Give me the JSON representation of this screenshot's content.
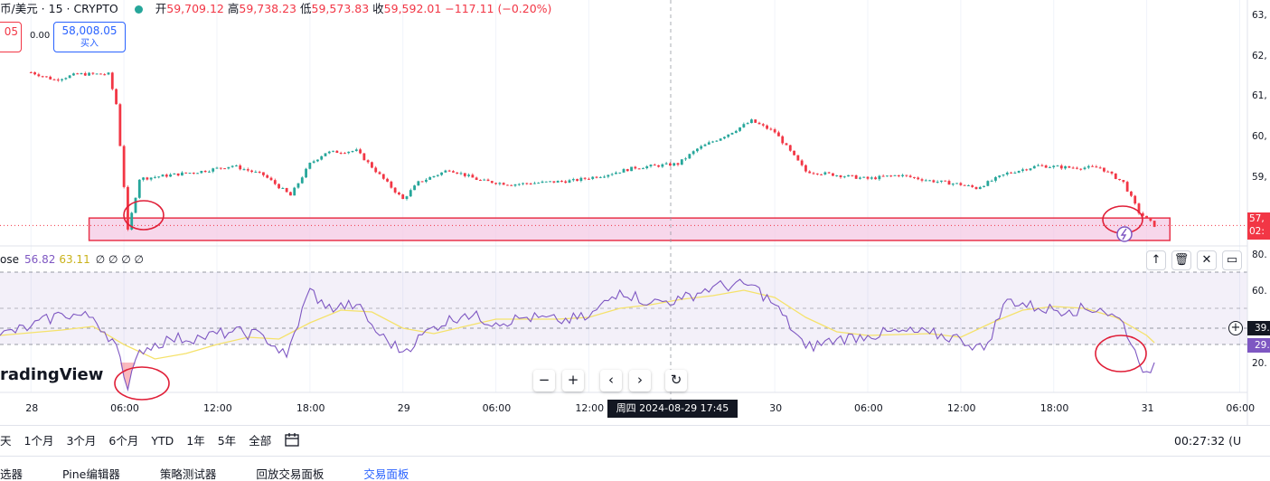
{
  "header": {
    "symbol": "币/美元 · 15 · CRYPTO",
    "open_label": "开",
    "open": "59,709.12",
    "high_label": "高",
    "high": "59,738.23",
    "low_label": "低",
    "low": "59,573.83",
    "close_label": "收",
    "close": "59,592.01",
    "change": "−117.11 (−0.20%)"
  },
  "trade": {
    "sell_price": "05",
    "spread": "0.00",
    "buy_price": "58,008.05",
    "buy_label": "买入"
  },
  "price_axis": [
    "63,",
    "62,",
    "61,",
    "60,",
    "59,",
    "57,",
    "02:"
  ],
  "rsi_axis": [
    "80.",
    "60.",
    "20.",
    "39.",
    "29."
  ],
  "rsi_legend": {
    "name": "ose",
    "rsi": "56.82",
    "ma": "63.11",
    "extras": "∅ ∅ ∅ ∅"
  },
  "time_axis": [
    "28",
    "06:00",
    "12:00",
    "18:00",
    "29",
    "06:00",
    "12:00",
    "30",
    "06:00",
    "12:00",
    "18:00",
    "31",
    "06:00"
  ],
  "crosshair_label": "周四 2024-08-29   17:45",
  "logo": "radingView",
  "range_buttons": [
    "天",
    "1个月",
    "3个月",
    "6个月",
    "YTD",
    "1年",
    "5年",
    "全部"
  ],
  "clock": "00:27:32 (U",
  "bottom_tabs": [
    "选器",
    "Pine编辑器",
    "策略测试器",
    "回放交易面板",
    "交易面板"
  ],
  "colors": {
    "up": "#26a69a",
    "down": "#f23645",
    "rsi": "#7e57c2",
    "rsi_ma": "#f5e26b",
    "zone": "#f3c6e3"
  },
  "chart_data": [
    {
      "type": "candlestick",
      "title": "",
      "y_unit": "USD",
      "ylim": [
        57500,
        63500
      ],
      "x_range": [
        "2024-08-27 22:00",
        "2024-08-31 06:30"
      ],
      "price_path": [
        [
          "2024-08-28 00:00",
          62050
        ],
        [
          "2024-08-28 01:30",
          61850
        ],
        [
          "2024-08-28 03:00",
          62000
        ],
        [
          "2024-08-28 05:00",
          62000
        ],
        [
          "2024-08-28 05:30",
          61200
        ],
        [
          "2024-08-28 06:00",
          59000
        ],
        [
          "2024-08-28 06:15",
          57800
        ],
        [
          "2024-08-28 07:00",
          59200
        ],
        [
          "2024-08-28 09:00",
          59300
        ],
        [
          "2024-08-28 11:00",
          59400
        ],
        [
          "2024-08-28 13:00",
          59550
        ],
        [
          "2024-08-28 15:00",
          59300
        ],
        [
          "2024-08-28 16:45",
          58750
        ],
        [
          "2024-08-28 18:00",
          59600
        ],
        [
          "2024-08-28 19:00",
          59900
        ],
        [
          "2024-08-28 21:00",
          59950
        ],
        [
          "2024-08-28 22:30",
          59300
        ],
        [
          "2024-08-29 00:00",
          58650
        ],
        [
          "2024-08-29 01:00",
          59100
        ],
        [
          "2024-08-29 03:00",
          59450
        ],
        [
          "2024-08-29 05:00",
          59150
        ],
        [
          "2024-08-29 07:00",
          59050
        ],
        [
          "2024-08-29 09:00",
          59100
        ],
        [
          "2024-08-29 11:00",
          59150
        ],
        [
          "2024-08-29 13:00",
          59300
        ],
        [
          "2024-08-29 15:00",
          59500
        ],
        [
          "2024-08-29 17:45",
          59600
        ],
        [
          "2024-08-29 19:00",
          60000
        ],
        [
          "2024-08-29 21:00",
          60400
        ],
        [
          "2024-08-29 22:30",
          60750
        ],
        [
          "2024-08-30 00:00",
          60450
        ],
        [
          "2024-08-30 02:00",
          59400
        ],
        [
          "2024-08-30 04:00",
          59300
        ],
        [
          "2024-08-30 06:00",
          59200
        ],
        [
          "2024-08-30 08:00",
          59300
        ],
        [
          "2024-08-30 10:00",
          59150
        ],
        [
          "2024-08-30 12:00",
          59050
        ],
        [
          "2024-08-30 13:00",
          58950
        ],
        [
          "2024-08-30 15:00",
          59350
        ],
        [
          "2024-08-30 17:00",
          59550
        ],
        [
          "2024-08-30 19:00",
          59500
        ],
        [
          "2024-08-30 21:00",
          59500
        ],
        [
          "2024-08-30 22:30",
          59100
        ],
        [
          "2024-08-30 23:30",
          58300
        ],
        [
          "2024-08-31 00:30",
          57950
        ]
      ],
      "support_zone": [
        57550,
        58150
      ],
      "current_price": 57950
    },
    {
      "type": "line",
      "title": "",
      "ylim": [
        14,
        82
      ],
      "levels": [
        70,
        50,
        30
      ],
      "series": [
        {
          "values": [
            [
              "2024-08-27 22:00",
              45
            ],
            [
              "2024-08-28 00:00",
              50
            ],
            [
              "2024-08-28 02:00",
              57
            ],
            [
              "2024-08-28 04:00",
              55
            ],
            [
              "2024-08-28 05:30",
              40
            ],
            [
              "2024-08-28 06:00",
              22
            ],
            [
              "2024-08-28 06:15",
              15
            ],
            [
              "2024-08-28 07:00",
              37
            ],
            [
              "2024-08-28 09:00",
              43
            ],
            [
              "2024-08-28 11:00",
              44
            ],
            [
              "2024-08-28 13:00",
              47
            ],
            [
              "2024-08-28 15:00",
              45
            ],
            [
              "2024-08-28 16:30",
              33
            ],
            [
              "2024-08-28 18:00",
              71
            ],
            [
              "2024-08-28 19:00",
              60
            ],
            [
              "2024-08-28 21:00",
              62
            ],
            [
              "2024-08-28 22:30",
              45
            ],
            [
              "2024-08-29 00:00",
              36
            ],
            [
              "2024-08-29 02:00",
              50
            ],
            [
              "2024-08-29 04:00",
              57
            ],
            [
              "2024-08-29 06:00",
              52
            ],
            [
              "2024-08-29 08:00",
              55
            ],
            [
              "2024-08-29 10:00",
              53
            ],
            [
              "2024-08-29 12:00",
              55
            ],
            [
              "2024-08-29 14:00",
              70
            ],
            [
              "2024-08-29 16:00",
              63
            ],
            [
              "2024-08-29 18:00",
              65
            ],
            [
              "2024-08-29 20:00",
              72
            ],
            [
              "2024-08-29 22:30",
              73
            ],
            [
              "2024-08-30 00:00",
              62
            ],
            [
              "2024-08-30 02:00",
              38
            ],
            [
              "2024-08-30 04:00",
              43
            ],
            [
              "2024-08-30 06:00",
              45
            ],
            [
              "2024-08-30 08:00",
              47
            ],
            [
              "2024-08-30 10:00",
              46
            ],
            [
              "2024-08-30 12:00",
              43
            ],
            [
              "2024-08-30 13:30",
              37
            ],
            [
              "2024-08-30 15:00",
              65
            ],
            [
              "2024-08-30 17:00",
              60
            ],
            [
              "2024-08-30 19:00",
              59
            ],
            [
              "2024-08-30 21:00",
              60
            ],
            [
              "2024-08-30 22:30",
              52
            ],
            [
              "2024-08-30 23:30",
              30
            ],
            [
              "2024-08-31 00:00",
              25
            ],
            [
              "2024-08-31 00:30",
              30
            ]
          ]
        },
        {
          "values": [
            [
              "2024-08-27 22:00",
              45
            ],
            [
              "2024-08-28 02:00",
              48
            ],
            [
              "2024-08-28 04:00",
              50
            ],
            [
              "2024-08-28 06:00",
              40
            ],
            [
              "2024-08-28 08:00",
              32
            ],
            [
              "2024-08-28 10:00",
              35
            ],
            [
              "2024-08-28 12:00",
              40
            ],
            [
              "2024-08-28 14:00",
              44
            ],
            [
              "2024-08-28 16:00",
              43
            ],
            [
              "2024-08-28 18:00",
              52
            ],
            [
              "2024-08-28 20:00",
              59
            ],
            [
              "2024-08-28 22:00",
              58
            ],
            [
              "2024-08-29 00:00",
              49
            ],
            [
              "2024-08-29 02:00",
              46
            ],
            [
              "2024-08-29 04:00",
              50
            ],
            [
              "2024-08-29 06:00",
              54
            ],
            [
              "2024-08-29 10:00",
              54
            ],
            [
              "2024-08-29 12:00",
              55
            ],
            [
              "2024-08-29 14:00",
              60
            ],
            [
              "2024-08-29 16:00",
              62
            ],
            [
              "2024-08-29 18:00",
              65
            ],
            [
              "2024-08-29 20:00",
              67
            ],
            [
              "2024-08-29 22:00",
              70
            ],
            [
              "2024-08-30 00:00",
              66
            ],
            [
              "2024-08-30 02:00",
              55
            ],
            [
              "2024-08-30 04:00",
              47
            ],
            [
              "2024-08-30 06:00",
              45
            ],
            [
              "2024-08-30 10:00",
              46
            ],
            [
              "2024-08-30 12:00",
              44
            ],
            [
              "2024-08-30 14:00",
              52
            ],
            [
              "2024-08-30 16:00",
              59
            ],
            [
              "2024-08-30 18:00",
              61
            ],
            [
              "2024-08-30 20:00",
              60
            ],
            [
              "2024-08-30 22:00",
              55
            ],
            [
              "2024-08-31 00:00",
              45
            ],
            [
              "2024-08-31 00:30",
              41
            ]
          ]
        }
      ],
      "current_values": [
        39,
        29
      ]
    }
  ]
}
